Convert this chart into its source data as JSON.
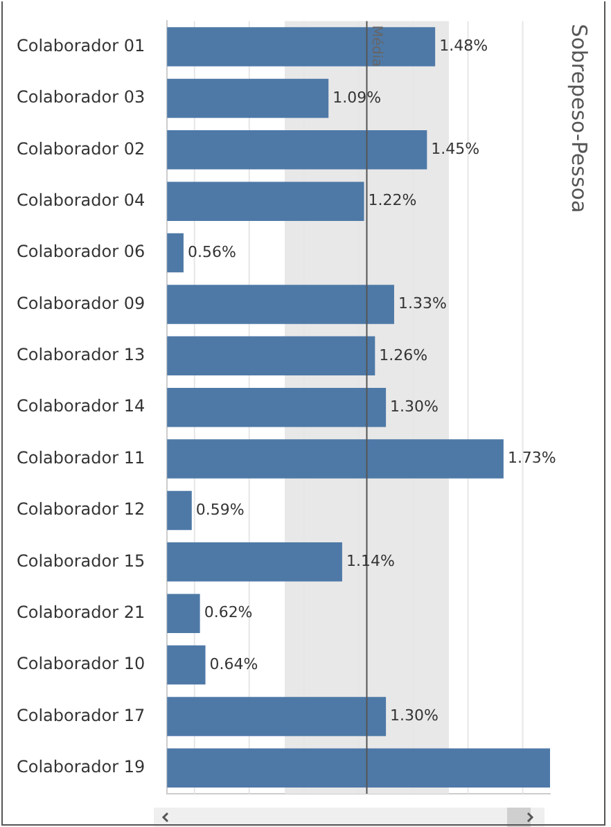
{
  "chart_data": {
    "type": "bar",
    "orientation": "horizontal",
    "ylabel": "Sobrepeso-Pessoa",
    "categories": [
      "Colaborador 01",
      "Colaborador 03",
      "Colaborador 02",
      "Colaborador 04",
      "Colaborador 06",
      "Colaborador 09",
      "Colaborador 13",
      "Colaborador 14",
      "Colaborador 11",
      "Colaborador 12",
      "Colaborador 15",
      "Colaborador 21",
      "Colaborador 10",
      "Colaborador 17",
      "Colaborador 19"
    ],
    "values": [
      1.48,
      1.09,
      1.45,
      1.22,
      0.56,
      1.33,
      1.26,
      1.3,
      1.73,
      0.59,
      1.14,
      0.62,
      0.64,
      1.3,
      1.9
    ],
    "value_labels": [
      "1.48%",
      "1.09%",
      "1.45%",
      "1.22%",
      "0.56%",
      "1.33%",
      "1.26%",
      "1.30%",
      "1.73%",
      "0.59%",
      "1.14%",
      "0.62%",
      "0.64%",
      "1.30%",
      null
    ],
    "color": "#4e79a7",
    "xlim": [
      0.5,
      1.9
    ],
    "xticks": [
      {
        "value": 0.6,
        "label": null
      },
      {
        "value": 0.8,
        "label": null
      },
      {
        "value": 1.0,
        "label": null
      },
      {
        "value": 1.2,
        "label": null
      },
      {
        "value": 1.4,
        "label": null
      },
      {
        "value": 1.6,
        "label": null
      },
      {
        "value": 1.8,
        "label": null
      }
    ],
    "tick_labels": "y",
    "grid": "x",
    "ref_lines": [
      {
        "axis": "x",
        "value": 1.23,
        "label": "Média",
        "color": "#555555"
      }
    ],
    "bands": [
      {
        "axis": "x",
        "from": 0.93,
        "to": 1.53,
        "color": "#e8e8e8"
      }
    ]
  }
}
